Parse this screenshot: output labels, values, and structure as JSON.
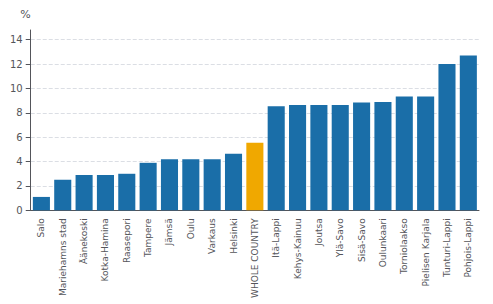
{
  "chart_data": {
    "type": "bar",
    "ylabel": "%",
    "categories": [
      "Salo",
      "Mariehamns stad",
      "Äänekoski",
      "Kotka-Hamina",
      "Raasepori",
      "Tampere",
      "Jämsä",
      "Oulu",
      "Varkaus",
      "Helsinki",
      "WHOLE COUNTRY",
      "Itä-Lappi",
      "Kehys-Kainuu",
      "Joutsa",
      "Ylä-Savo",
      "Sisä-Savo",
      "Oulunkaari",
      "Torniolaakso",
      "Pielisen Karjala",
      "Tunturi-Lappi",
      "Pohjois-Lappi"
    ],
    "values": [
      1.1,
      2.5,
      2.9,
      2.9,
      3.0,
      3.9,
      4.2,
      4.2,
      4.2,
      4.65,
      5.55,
      8.55,
      8.65,
      8.65,
      8.65,
      8.85,
      8.9,
      9.35,
      9.35,
      12.0,
      12.7
    ],
    "colors": [
      "#1a6ea8",
      "#1a6ea8",
      "#1a6ea8",
      "#1a6ea8",
      "#1a6ea8",
      "#1a6ea8",
      "#1a6ea8",
      "#1a6ea8",
      "#1a6ea8",
      "#1a6ea8",
      "#f0a800",
      "#1a6ea8",
      "#1a6ea8",
      "#1a6ea8",
      "#1a6ea8",
      "#1a6ea8",
      "#1a6ea8",
      "#1a6ea8",
      "#1a6ea8",
      "#1a6ea8",
      "#1a6ea8"
    ],
    "ylim": [
      0,
      14.8
    ],
    "yticks": [
      0,
      2,
      4,
      6,
      8,
      10,
      12,
      14
    ],
    "grid": true
  }
}
